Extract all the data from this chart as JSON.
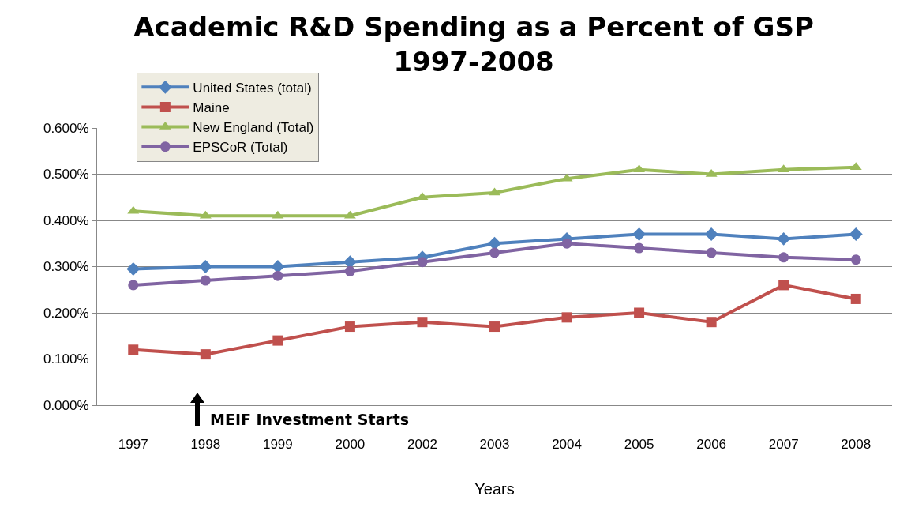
{
  "chart_data": {
    "type": "line",
    "title": "Academic R&D Spending as a Percent of GSP\n1997-2008",
    "xlabel": "Years",
    "categories": [
      "1997",
      "1998",
      "1999",
      "2000",
      "2002",
      "2003",
      "2004",
      "2005",
      "2006",
      "2007",
      "2008"
    ],
    "series": [
      {
        "name": "United States (total)",
        "color": "#4f81bd",
        "marker": "diamond",
        "values": [
          0.295,
          0.3,
          0.3,
          0.31,
          0.32,
          0.35,
          0.36,
          0.37,
          0.37,
          0.36,
          0.37
        ]
      },
      {
        "name": "Maine",
        "color": "#c0504d",
        "marker": "square",
        "values": [
          0.12,
          0.11,
          0.14,
          0.17,
          0.18,
          0.17,
          0.19,
          0.2,
          0.18,
          0.26,
          0.23
        ]
      },
      {
        "name": "New England (Total)",
        "color": "#9bbb59",
        "marker": "triangle",
        "values": [
          0.42,
          0.41,
          0.41,
          0.41,
          0.45,
          0.46,
          0.49,
          0.51,
          0.5,
          0.51,
          0.515
        ]
      },
      {
        "name": "EPSCoR (Total)",
        "color": "#8064a2",
        "marker": "circle",
        "values": [
          0.26,
          0.27,
          0.28,
          0.29,
          0.31,
          0.33,
          0.35,
          0.34,
          0.33,
          0.32,
          0.315
        ]
      }
    ],
    "ylim": [
      0,
      0.6
    ],
    "yticks": [
      {
        "value": 0,
        "label": "0.000%"
      },
      {
        "value": 0.1,
        "label": "0.100%"
      },
      {
        "value": 0.2,
        "label": "0.200%"
      },
      {
        "value": 0.3,
        "label": "0.300%"
      },
      {
        "value": 0.4,
        "label": "0.400%"
      },
      {
        "value": 0.5,
        "label": "0.500%"
      },
      {
        "value": 0.6,
        "label": "0.600%"
      }
    ],
    "grid": "y",
    "legend": "top left",
    "annotations": [
      "MEIF Investment Starts"
    ]
  }
}
